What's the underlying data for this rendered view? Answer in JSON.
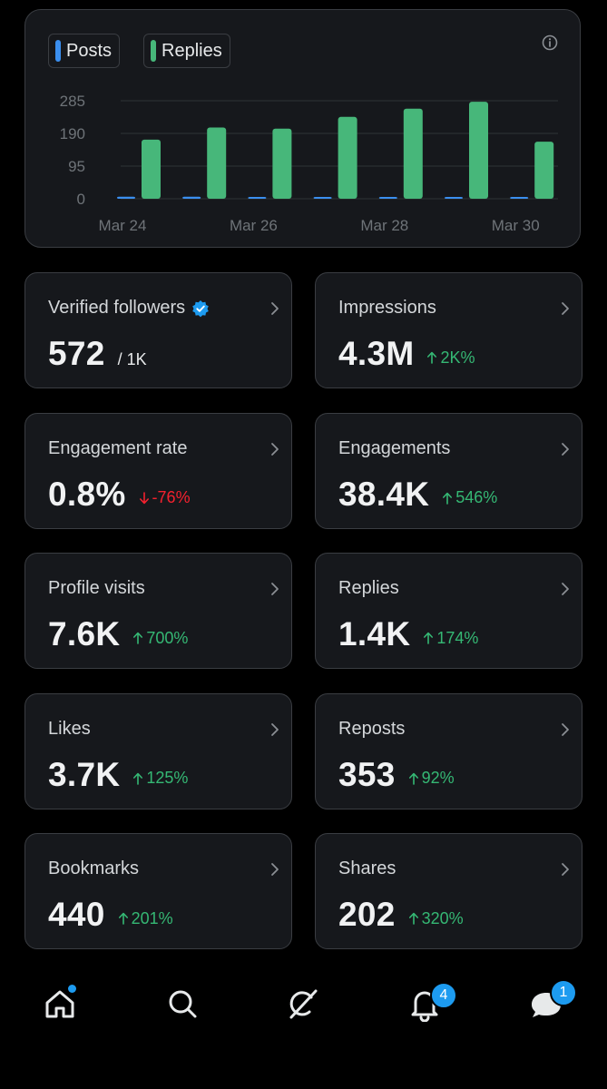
{
  "colors": {
    "posts": "#3b8fef",
    "replies": "#47b77a",
    "positive": "#35b874",
    "negative": "#f4212e",
    "accent": "#1d9bf0"
  },
  "chart_data": {
    "type": "bar",
    "legend": [
      "Posts",
      "Replies"
    ],
    "x": [
      "Mar 24",
      "Mar 25",
      "Mar 26",
      "Mar 27",
      "Mar 28",
      "Mar 29",
      "Mar 30"
    ],
    "tick_labels_x": [
      "Mar 24",
      "Mar 26",
      "Mar 28",
      "Mar 30"
    ],
    "ytick_labels": [
      "285",
      "190",
      "95",
      "0"
    ],
    "yticks": [
      0,
      95,
      190,
      285
    ],
    "ylim": [
      0,
      285
    ],
    "grid": true,
    "series": [
      {
        "name": "Posts",
        "color": "#3b8fef",
        "values": [
          6,
          6,
          5,
          2,
          2,
          2,
          2
        ]
      },
      {
        "name": "Replies",
        "color": "#47b77a",
        "values": [
          172,
          207,
          204,
          238,
          262,
          282,
          166
        ]
      }
    ]
  },
  "chart_ui": {
    "legend_posts": "Posts",
    "legend_replies": "Replies",
    "info_icon": "info-circle-icon"
  },
  "stats": [
    {
      "label": "Verified followers",
      "value": "572",
      "sub": "/ 1K",
      "verified": true
    },
    {
      "label": "Impressions",
      "value": "4.3M",
      "change": "2K%",
      "direction": "up"
    },
    {
      "label": "Engagement rate",
      "value": "0.8%",
      "change": "-76%",
      "direction": "down"
    },
    {
      "label": "Engagements",
      "value": "38.4K",
      "change": "546%",
      "direction": "up"
    },
    {
      "label": "Profile visits",
      "value": "7.6K",
      "change": "700%",
      "direction": "up"
    },
    {
      "label": "Replies",
      "value": "1.4K",
      "change": "174%",
      "direction": "up"
    },
    {
      "label": "Likes",
      "value": "3.7K",
      "change": "125%",
      "direction": "up"
    },
    {
      "label": "Reposts",
      "value": "353",
      "change": "92%",
      "direction": "up"
    },
    {
      "label": "Bookmarks",
      "value": "440",
      "change": "201%",
      "direction": "up"
    },
    {
      "label": "Shares",
      "value": "202",
      "change": "320%",
      "direction": "up"
    }
  ],
  "nav": {
    "items": [
      "home-icon",
      "search-icon",
      "grok-icon",
      "notifications-icon",
      "messages-icon"
    ],
    "notifications_badge": "4",
    "messages_badge": "1"
  }
}
